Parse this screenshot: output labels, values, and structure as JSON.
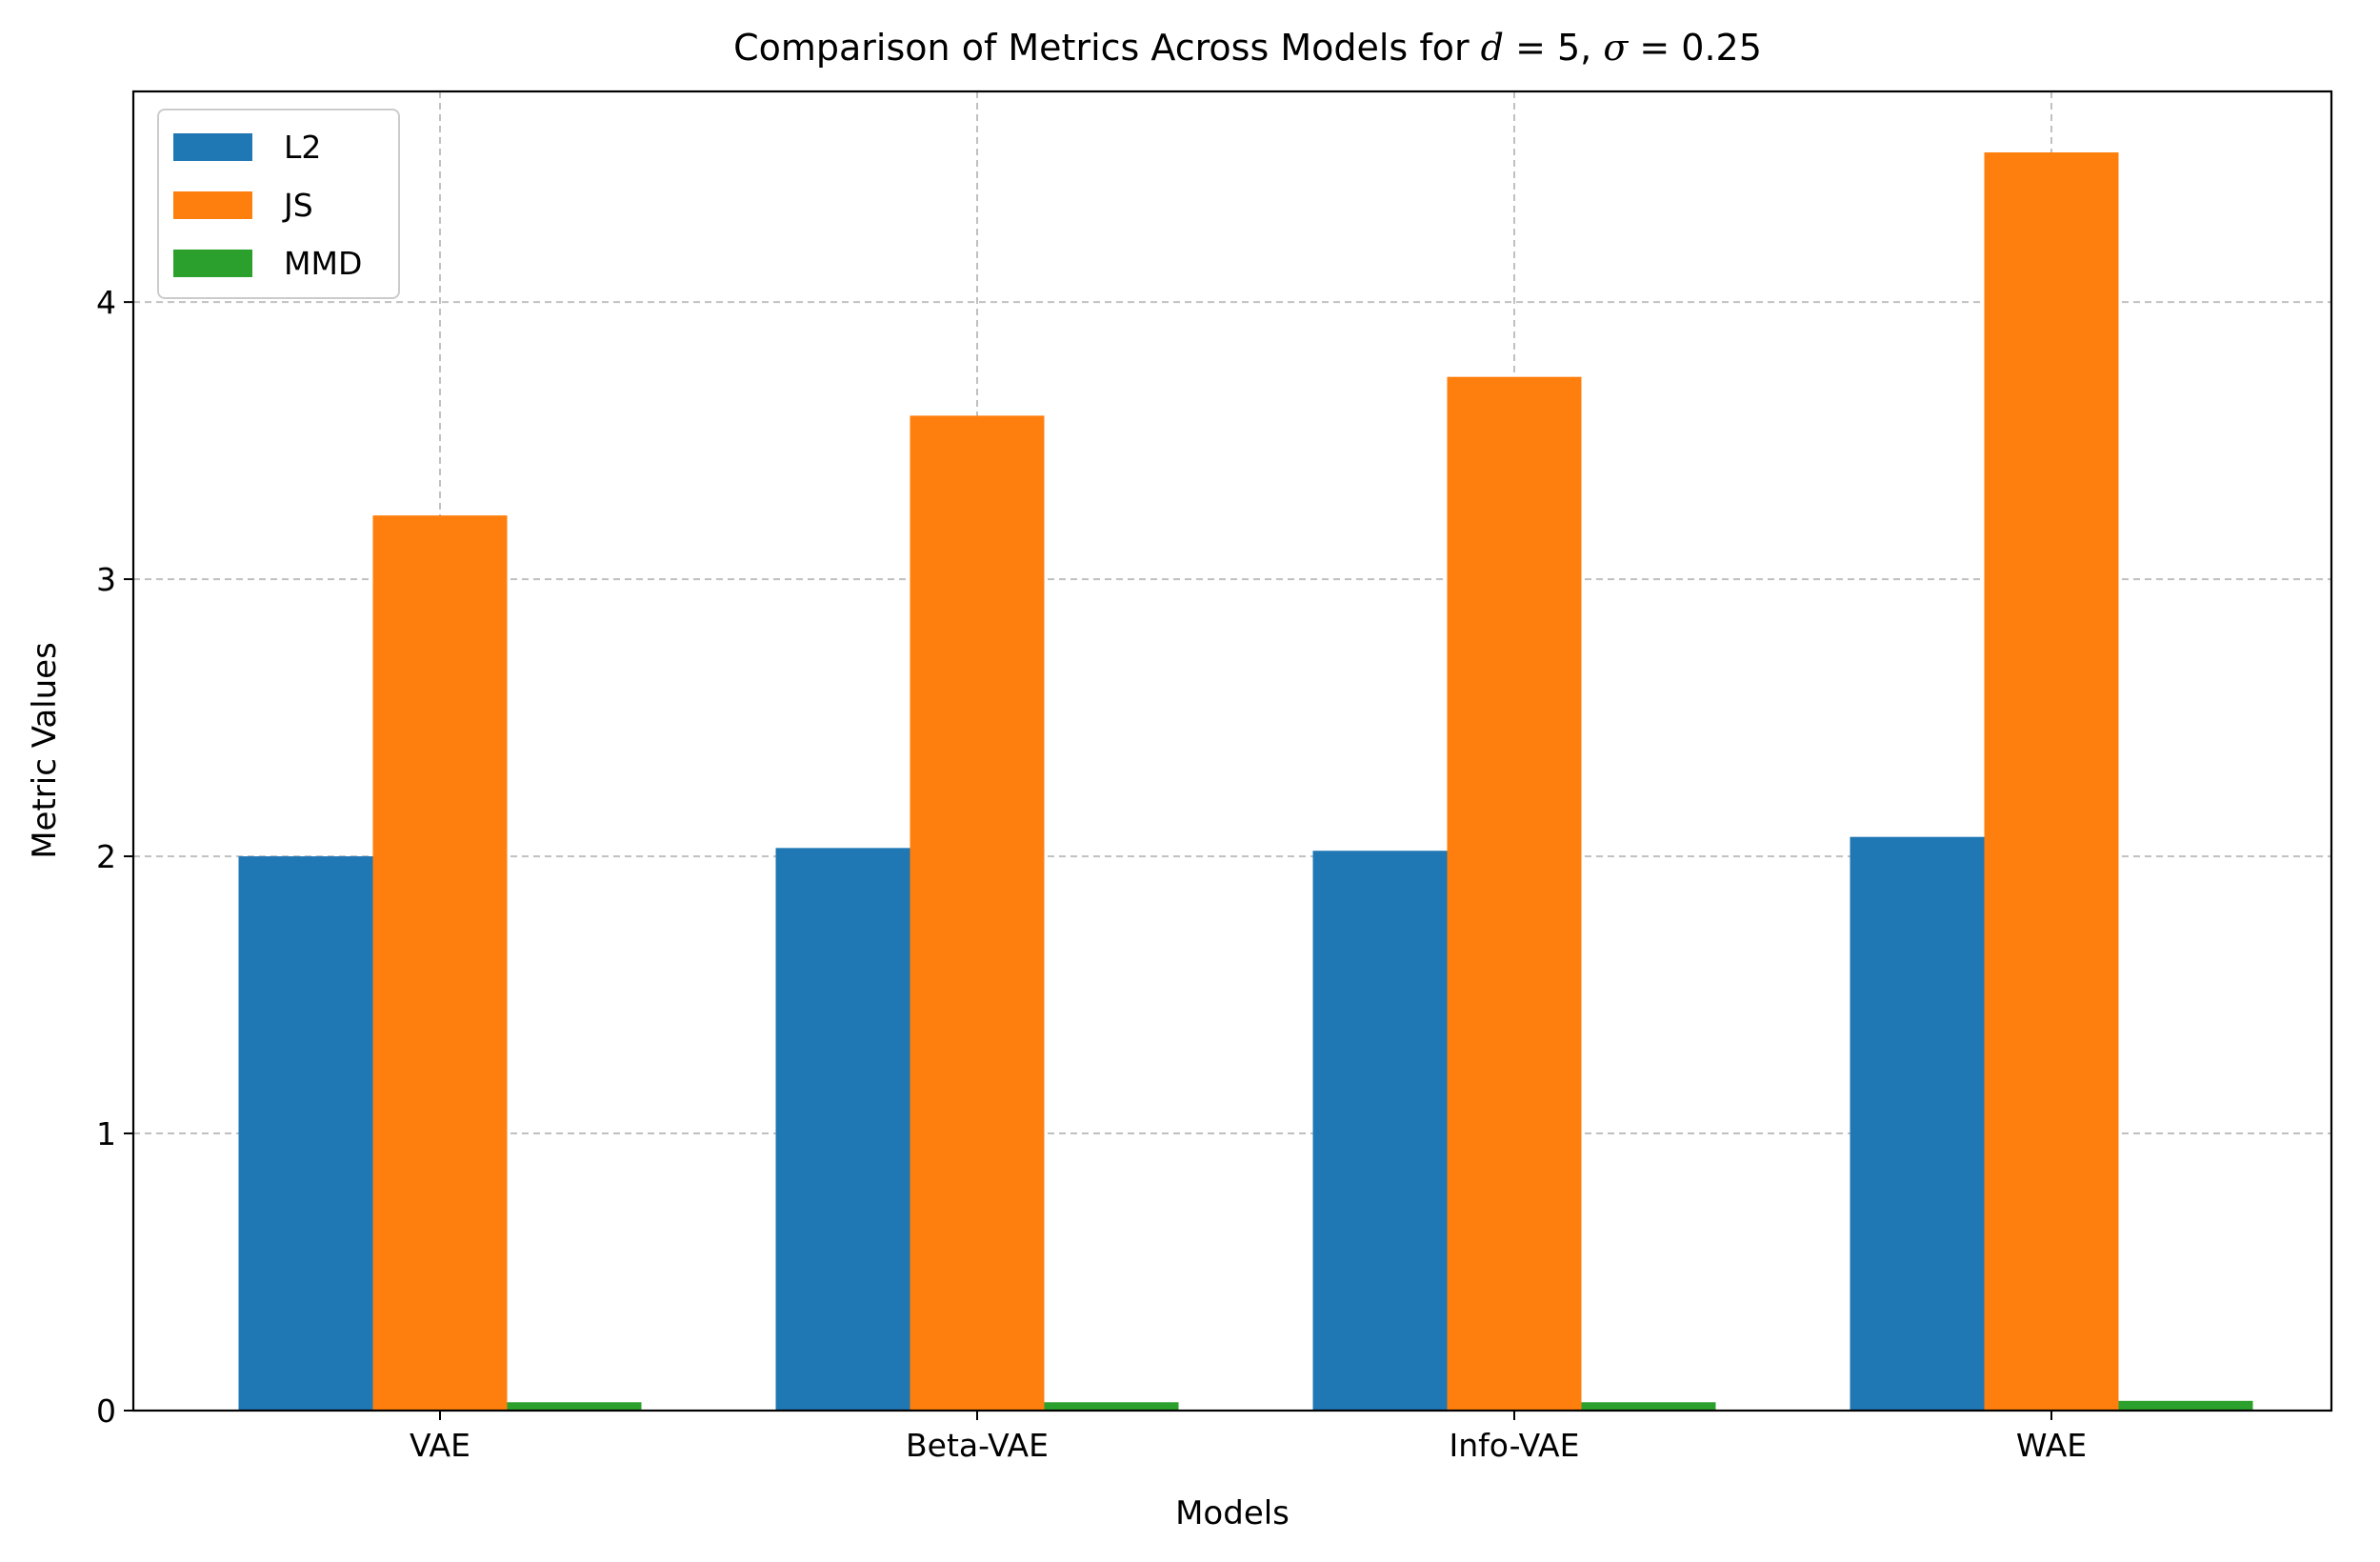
{
  "chart_data": {
    "type": "bar",
    "title": {
      "text": "Comparison of Metrics Across Models for ",
      "var_d": "d",
      "eq": " = ",
      "d_value": "5",
      "sep": ", ",
      "var_sigma": "σ",
      "sigma_value": "0.25"
    },
    "xlabel": "Models",
    "ylabel": "Metric Values",
    "categories": [
      "VAE",
      "Beta-VAE",
      "Info-VAE",
      "WAE"
    ],
    "series": [
      {
        "name": "L2",
        "color": "#1f77b4",
        "values": [
          2.0,
          2.03,
          2.02,
          2.07
        ]
      },
      {
        "name": "JS",
        "color": "#ff7f0e",
        "values": [
          3.23,
          3.59,
          3.73,
          4.54
        ]
      },
      {
        "name": "MMD",
        "color": "#2ca02c",
        "values": [
          0.03,
          0.03,
          0.03,
          0.035
        ]
      }
    ],
    "ylim": [
      0,
      4.76
    ],
    "yticks": [
      0,
      1,
      2,
      3,
      4
    ],
    "grid": true,
    "legend": "top-left"
  }
}
